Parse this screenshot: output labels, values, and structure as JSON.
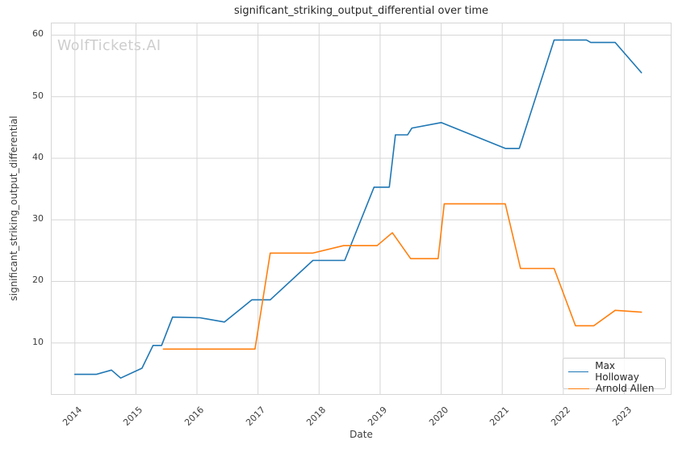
{
  "watermark": {
    "text": "WolfTickets.AI",
    "color": "#cdcdcd"
  },
  "colors": {
    "grid": "#d6d6d6",
    "axis_text": "#3d3d3d",
    "title_text": "#262626",
    "background": "#ffffff"
  },
  "chart_data": {
    "type": "line",
    "title": "significant_striking_output_differential over time",
    "xlabel": "Date",
    "ylabel": "significant_striking_output_differential",
    "grid": true,
    "legend_position": "lower right",
    "xlim": [
      2013.62,
      2023.76
    ],
    "ylim": [
      1.7,
      61.9
    ],
    "xticks": [
      2014,
      2015,
      2016,
      2017,
      2018,
      2019,
      2020,
      2021,
      2022,
      2023
    ],
    "yticks": [
      10,
      20,
      30,
      40,
      50,
      60
    ],
    "series": [
      {
        "name": "Max Holloway",
        "color": "#1f77b4",
        "points": [
          [
            2014.0,
            4.9
          ],
          [
            2014.35,
            4.9
          ],
          [
            2014.6,
            5.6
          ],
          [
            2014.75,
            4.3
          ],
          [
            2015.1,
            5.9
          ],
          [
            2015.28,
            9.6
          ],
          [
            2015.42,
            9.6
          ],
          [
            2015.6,
            14.2
          ],
          [
            2016.05,
            14.1
          ],
          [
            2016.45,
            13.4
          ],
          [
            2016.9,
            17.0
          ],
          [
            2017.2,
            17.0
          ],
          [
            2017.9,
            23.4
          ],
          [
            2018.42,
            23.4
          ],
          [
            2018.9,
            35.3
          ],
          [
            2019.15,
            35.3
          ],
          [
            2019.25,
            43.8
          ],
          [
            2019.45,
            43.8
          ],
          [
            2019.52,
            44.9
          ],
          [
            2020.0,
            45.8
          ],
          [
            2021.05,
            41.6
          ],
          [
            2021.28,
            41.6
          ],
          [
            2021.85,
            59.2
          ],
          [
            2022.38,
            59.2
          ],
          [
            2022.45,
            58.8
          ],
          [
            2022.85,
            58.8
          ],
          [
            2023.28,
            53.9
          ]
        ]
      },
      {
        "name": "Arnold Allen",
        "color": "#ff7f0e",
        "points": [
          [
            2015.45,
            9.0
          ],
          [
            2016.95,
            9.0
          ],
          [
            2017.2,
            24.6
          ],
          [
            2017.9,
            24.6
          ],
          [
            2018.4,
            25.8
          ],
          [
            2018.95,
            25.8
          ],
          [
            2019.2,
            27.9
          ],
          [
            2019.5,
            23.7
          ],
          [
            2019.95,
            23.7
          ],
          [
            2020.05,
            32.6
          ],
          [
            2021.05,
            32.6
          ],
          [
            2021.3,
            22.1
          ],
          [
            2021.85,
            22.1
          ],
          [
            2022.2,
            12.8
          ],
          [
            2022.5,
            12.8
          ],
          [
            2022.85,
            15.3
          ],
          [
            2023.28,
            15.0
          ]
        ]
      }
    ]
  }
}
